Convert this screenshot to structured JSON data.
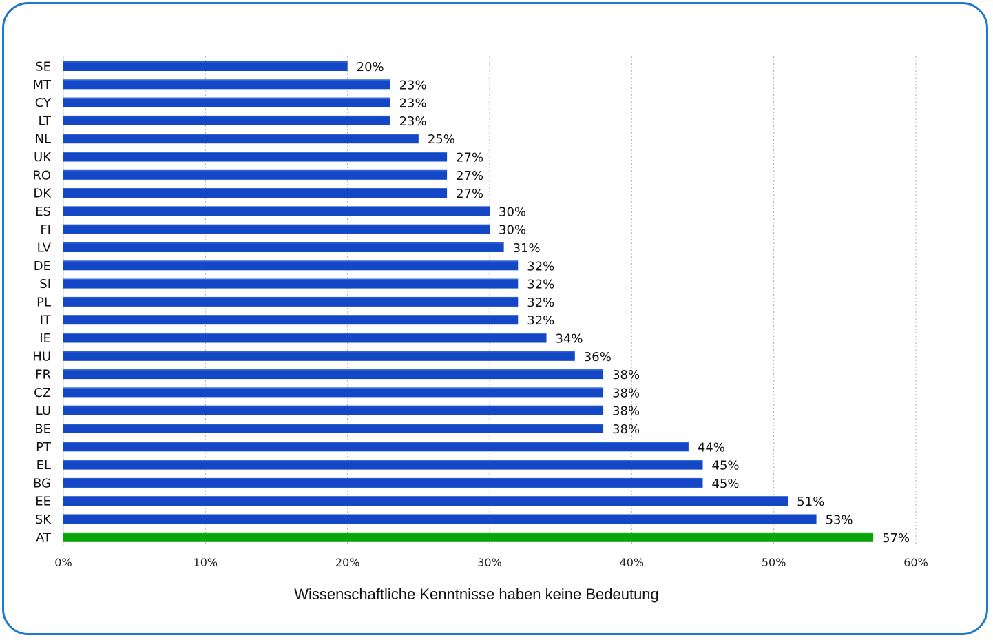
{
  "chart_data": {
    "type": "bar",
    "orientation": "horizontal",
    "categories": [
      "SE",
      "MT",
      "CY",
      "LT",
      "NL",
      "UK",
      "RO",
      "DK",
      "ES",
      "FI",
      "LV",
      "DE",
      "SI",
      "PL",
      "IT",
      "IE",
      "HU",
      "FR",
      "CZ",
      "LU",
      "BE",
      "PT",
      "EL",
      "BG",
      "EE",
      "SK",
      "AT"
    ],
    "values": [
      20,
      23,
      23,
      23,
      25,
      27,
      27,
      27,
      30,
      30,
      31,
      32,
      32,
      32,
      32,
      34,
      36,
      38,
      38,
      38,
      38,
      44,
      45,
      45,
      51,
      53,
      57
    ],
    "value_labels": [
      "20%",
      "23%",
      "23%",
      "23%",
      "25%",
      "27%",
      "27%",
      "27%",
      "30%",
      "30%",
      "31%",
      "32%",
      "32%",
      "32%",
      "32%",
      "34%",
      "36%",
      "38%",
      "38%",
      "38%",
      "38%",
      "44%",
      "45%",
      "45%",
      "51%",
      "53%",
      "57%"
    ],
    "highlight_category": "AT",
    "colors": {
      "default": "#1447c6",
      "highlight": "#0aa50a",
      "frame": "#1f78c8",
      "grid": "#b0b0b0"
    },
    "xlim": [
      0,
      60
    ],
    "xticks": [
      0,
      10,
      20,
      30,
      40,
      50,
      60
    ],
    "xtick_labels": [
      "0%",
      "10%",
      "20%",
      "30%",
      "40%",
      "50%",
      "60%"
    ],
    "xlabel": "Wissenschaftliche Kenntnisse haben keine Bedeutung",
    "grid": true
  }
}
